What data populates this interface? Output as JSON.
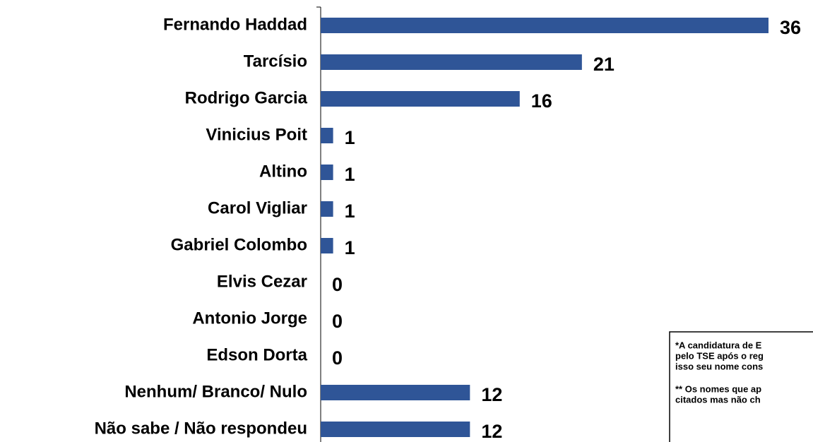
{
  "chart_data": {
    "type": "bar",
    "orientation": "horizontal",
    "categories": [
      "Fernando Haddad",
      "Tarcísio",
      "Rodrigo Garcia",
      "Vinicius Poit",
      "Altino",
      "Carol Vigliar",
      "Gabriel Colombo",
      "Elvis Cezar",
      "Antonio Jorge",
      "Edson Dorta",
      "Nenhum/ Branco/ Nulo",
      "Não sabe / Não respondeu"
    ],
    "values": [
      36,
      21,
      16,
      1,
      1,
      1,
      1,
      0,
      0,
      0,
      12,
      12
    ],
    "color": "#2f5597",
    "notes": [
      "*A candidatura de E",
      "pelo TSE após o reg",
      "isso seu nome cons",
      "** Os nomes que ap",
      "citados mas não ch"
    ]
  }
}
